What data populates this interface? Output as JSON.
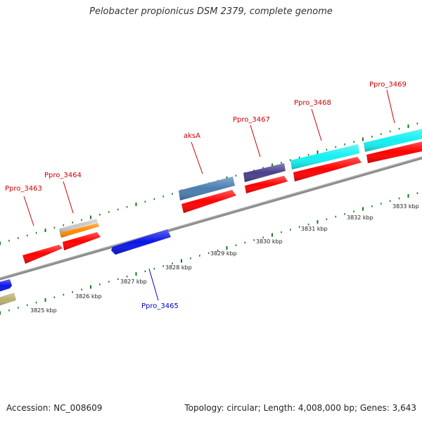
{
  "title": "Pelobacter propionicus DSM 2379, complete genome",
  "footer": {
    "accession": "Accession: NC_008609",
    "genome_info": "Topology: circular; Length: 4,008,000 bp; Genes: 3,643"
  },
  "colors": {
    "backbone": "#8a8a8a",
    "tick": "#1a7a1a",
    "forward_label": "#cc0000",
    "reverse_label": "#0000cc",
    "cds_red": "#ff0000",
    "blue": "#0a14e6",
    "steelblue": "#4a7db0",
    "slate": "#4a3f8a",
    "cyan": "#14f0f0",
    "grey": "#c8c8c8",
    "orange": "#ff8c00",
    "khaki": "#b8b070"
  },
  "scale": {
    "unit": "kbp",
    "labels": [
      "3825 kbp",
      "3826 kbp",
      "3827 kbp",
      "3828 kbp",
      "3829 kbp",
      "3830 kbp",
      "3831 kbp",
      "3832 kbp",
      "3833 kbp"
    ],
    "kbp": [
      3825,
      3826,
      3827,
      3828,
      3829,
      3830,
      3831,
      3832,
      3833
    ]
  },
  "gene_labels": [
    {
      "text": "Ppro_3463",
      "strand": "forward"
    },
    {
      "text": "Ppro_3464",
      "strand": "forward"
    },
    {
      "text": "aksA",
      "strand": "forward"
    },
    {
      "text": "Ppro_3467",
      "strand": "forward"
    },
    {
      "text": "Ppro_3468",
      "strand": "forward"
    },
    {
      "text": "Ppro_3469",
      "strand": "forward"
    },
    {
      "text": "Ppro_3465",
      "strand": "reverse"
    }
  ]
}
